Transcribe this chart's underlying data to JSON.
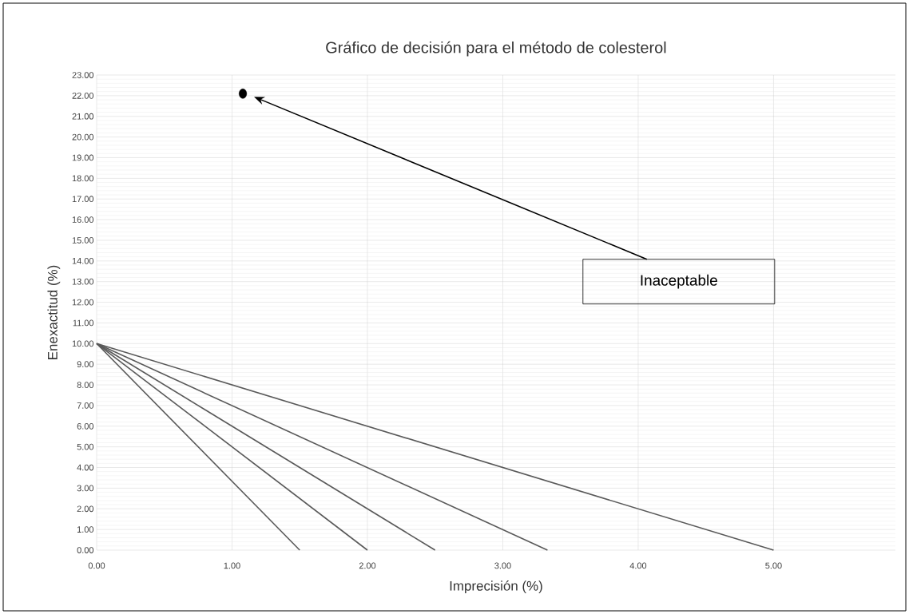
{
  "chart_data": {
    "type": "line",
    "title": "Gráfico de decisión para el método de colesterol",
    "xlabel": "Imprecisión (%)",
    "ylabel": "Enexactitud (%)",
    "series": [
      {
        "color": "#595959",
        "x": [
          0,
          1.5
        ],
        "values": [
          10,
          0
        ]
      },
      {
        "color": "#595959",
        "x": [
          0,
          2
        ],
        "values": [
          10,
          0
        ]
      },
      {
        "color": "#595959",
        "x": [
          0,
          2.5
        ],
        "values": [
          10,
          0
        ]
      },
      {
        "color": "#595959",
        "x": [
          0,
          3.33
        ],
        "values": [
          10,
          0
        ]
      },
      {
        "color": "#595959",
        "x": [
          0,
          5
        ],
        "values": [
          10,
          0
        ]
      },
      {
        "type": "scatter",
        "color": "#000000",
        "marker": "circle",
        "x": [
          1.08
        ],
        "values": [
          22.1
        ]
      }
    ],
    "annotations": [
      "Inaceptable"
    ],
    "xlim": [
      0,
      5.9
    ],
    "ylim": [
      0,
      23
    ],
    "xticks": [
      {
        "value": 0,
        "label": "0.00"
      },
      {
        "value": 1,
        "label": "1.00"
      },
      {
        "value": 2,
        "label": "2.00"
      },
      {
        "value": 3,
        "label": "3.00"
      },
      {
        "value": 4,
        "label": "4.00"
      },
      {
        "value": 5,
        "label": "5.00"
      }
    ],
    "yticks": [
      {
        "value": 0,
        "label": "0.00"
      },
      {
        "value": 1,
        "label": "1.00"
      },
      {
        "value": 2,
        "label": "2.00"
      },
      {
        "value": 3,
        "label": "3.00"
      },
      {
        "value": 4,
        "label": "4.00"
      },
      {
        "value": 5,
        "label": "5.00"
      },
      {
        "value": 6,
        "label": "6.00"
      },
      {
        "value": 7,
        "label": "7.00"
      },
      {
        "value": 8,
        "label": "8.00"
      },
      {
        "value": 9,
        "label": "9.00"
      },
      {
        "value": 10,
        "label": "10.00"
      },
      {
        "value": 11,
        "label": "11.00"
      },
      {
        "value": 12,
        "label": "12.00"
      },
      {
        "value": 13,
        "label": "13.00"
      },
      {
        "value": 14,
        "label": "14.00"
      },
      {
        "value": 15,
        "label": "15.00"
      },
      {
        "value": 16,
        "label": "16.00"
      },
      {
        "value": 17,
        "label": "17.00"
      },
      {
        "value": 18,
        "label": "18.00"
      },
      {
        "value": 19,
        "label": "19.00"
      },
      {
        "value": 20,
        "label": "20.00"
      },
      {
        "value": 21,
        "label": "21.00"
      },
      {
        "value": 22,
        "label": "22.00"
      },
      {
        "value": 23,
        "label": "23.00"
      }
    ],
    "grid": true,
    "legend": false,
    "marker": "none",
    "line_style": "solid"
  }
}
